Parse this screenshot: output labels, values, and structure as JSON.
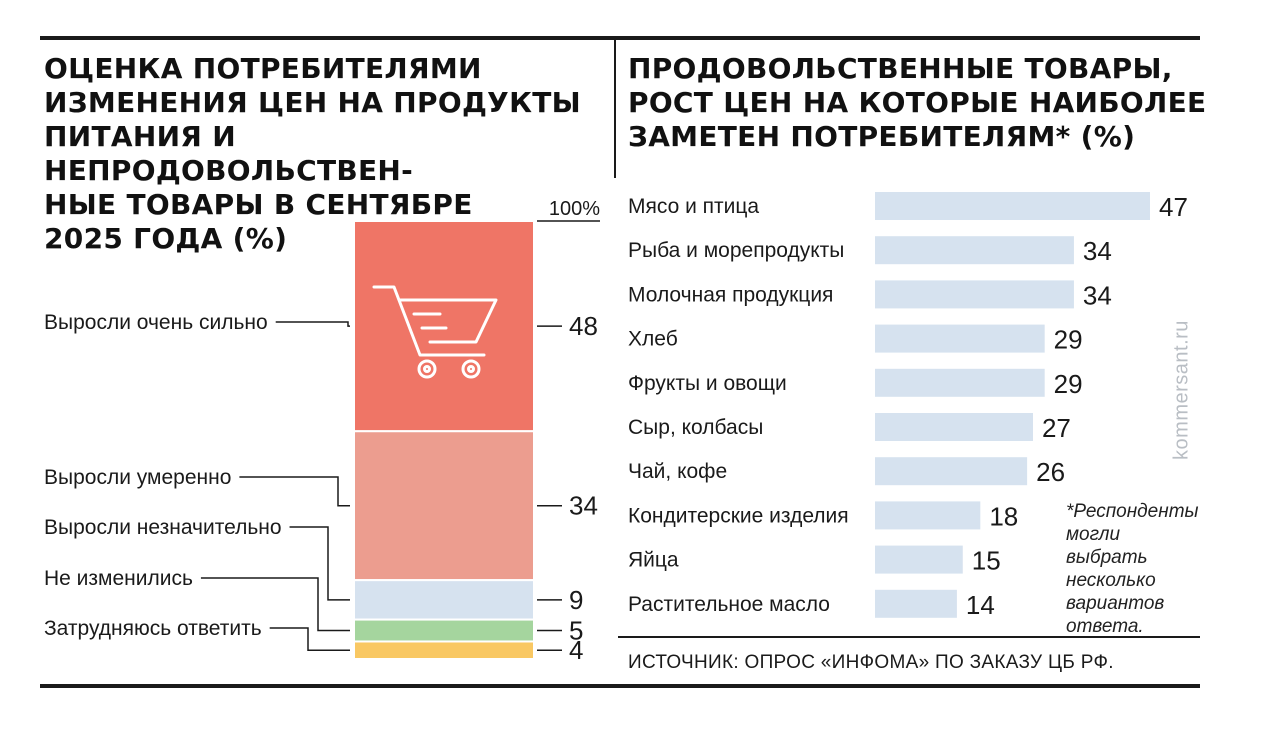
{
  "left": {
    "title": "Оценка потребителями\nизменения цен на продукты\nпитания и непродовольствен-\nные товары в сентябре\n2025 года (%)"
  },
  "right": {
    "title": "Продовольственные товары,\nрост цен на которые наиболее\nзаметен потребителям* (%)"
  },
  "note": "*Респонденты\nмогли выбрать\nнесколько\nвариантов\nответа.",
  "source": "ИСТОЧНИК: ОПРОС «ИНФОМА» ПО ЗАКАЗУ ЦБ РФ.",
  "watermark": "kommersant.ru",
  "icons": {
    "stack_icon": "shopping-cart-icon"
  },
  "chart_data": [
    {
      "type": "bar",
      "stacked": true,
      "total_label": "100%",
      "categories": [
        "Выросли очень сильно",
        "Выросли умеренно",
        "Выросли незначительно",
        "Не изменились",
        "Затрудняюсь ответить"
      ],
      "values": [
        48,
        34,
        9,
        5,
        4
      ],
      "colors": [
        "#ef7566",
        "#ec9d8f",
        "#d6e2ef",
        "#a5d59e",
        "#f9c863"
      ],
      "ylim": [
        0,
        100
      ]
    },
    {
      "type": "bar",
      "orientation": "horizontal",
      "categories": [
        "Мясо и птица",
        "Рыба и морепродукты",
        "Молочная продукция",
        "Хлеб",
        "Фрукты и овощи",
        "Сыр, колбасы",
        "Чай, кофе",
        "Кондитерские изделия",
        "Яйца",
        "Растительное масло"
      ],
      "values": [
        47,
        34,
        34,
        29,
        29,
        27,
        26,
        18,
        15,
        14
      ],
      "color": "#d6e2ef"
    }
  ]
}
